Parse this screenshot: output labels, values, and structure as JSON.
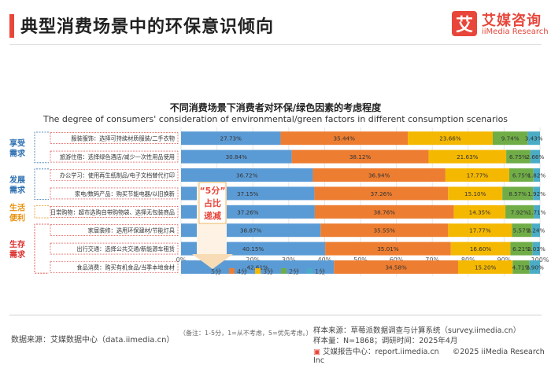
{
  "header": {
    "title": "典型消费场景中的环保意识倾向",
    "logo_mark": "艾",
    "logo_cn": "艾媒咨询",
    "logo_en": "iiMedia Research"
  },
  "chart_data": {
    "type": "bar",
    "orientation": "horizontal",
    "stacked": true,
    "title": "不同消费场景下消费者对环保/绿色因素的考虑程度",
    "subtitle": "The degree of consumers' consideration of environmental/green factors in different consumption scenarios",
    "categories": [
      "服装服饰：选择可持续材质服装/二手衣物",
      "旅游住宿：选择绿色酒店/减少一次性用品使用",
      "办公学习：使用再生纸制品/电子文档替代打印",
      "家电/数码产品：购买节能电器/以旧换新",
      "日常购物：超市选购自带购物袋、选择无包装商品",
      "家居装修：选用环保建材/节能灯具",
      "出行交通：选择公共交通/新能源车租赁",
      "食品消费：购买有机食品/当季本地食材"
    ],
    "series": [
      {
        "name": "5分",
        "color": "#5b9bd5",
        "values": [
          27.73,
          30.84,
          36.72,
          37.15,
          37.26,
          38.87,
          40.15,
          42.61
        ]
      },
      {
        "name": "4分",
        "color": "#ed7d31",
        "values": [
          35.44,
          38.12,
          36.94,
          37.26,
          38.76,
          35.55,
          35.01,
          34.58
        ]
      },
      {
        "name": "3分",
        "color": "#f5b800",
        "values": [
          23.66,
          21.63,
          17.77,
          15.1,
          14.35,
          17.77,
          16.6,
          15.2
        ]
      },
      {
        "name": "2分",
        "color": "#70ad47",
        "values": [
          9.74,
          6.75,
          6.75,
          8.57,
          7.92,
          5.57,
          6.21,
          4.71
        ]
      },
      {
        "name": "1分",
        "color": "#4bacc6",
        "values": [
          3.43,
          2.66,
          1.82,
          1.92,
          1.71,
          2.24,
          2.03,
          2.9
        ]
      }
    ],
    "labels": [
      [
        "27.73%",
        "35.44%",
        "23.66%",
        "9.74%",
        "3.43%"
      ],
      [
        "30.84%",
        "38.12%",
        "21.63%",
        "6.75%",
        "2.66%"
      ],
      [
        "36.72%",
        "36.94%",
        "17.77%",
        "6.75%",
        "1.82%"
      ],
      [
        "37.15%",
        "37.26%",
        "15.10%",
        "8.57%",
        "1.92%"
      ],
      [
        "37.26%",
        "38.76%",
        "14.35%",
        "7.92%",
        "1.71%"
      ],
      [
        "38.87%",
        "35.55%",
        "17.77%",
        "5.57%",
        "2.24%"
      ],
      [
        "40.15%",
        "35.01%",
        "16.60%",
        "6.21%",
        "2.03%"
      ],
      [
        "42.61%",
        "34.58%",
        "15.20%",
        "4.71%",
        "2.90%"
      ]
    ],
    "xticks": [
      "0%",
      "10%",
      "20%",
      "30%",
      "40%",
      "50%",
      "60%",
      "70%",
      "80%",
      "90%",
      "100%"
    ],
    "xlim": [
      0,
      100
    ],
    "legend_position": "bottom",
    "annotation": [
      "“5分”",
      "占比",
      "递减"
    ],
    "groups": [
      {
        "label": "享受需求",
        "color": "#2e6fb0",
        "rows": [
          0,
          1
        ]
      },
      {
        "label": "发展需求",
        "color": "#2e6fb0",
        "rows": [
          2,
          3
        ]
      },
      {
        "label": "生活便利",
        "color": "#e8900c",
        "rows": [
          4
        ]
      },
      {
        "label": "生存需求",
        "color": "#d9302c",
        "rows": [
          5,
          6,
          7
        ]
      }
    ]
  },
  "footer": {
    "source_left": "数据来源：艾媒数据中心（data.iimedia.cn）",
    "note": "（备注：1-5分，1=从不考虑，5=优先考虑。）",
    "sample_source": "样本来源：草莓派数据调查与计算系统（survey.iimedia.cn）",
    "sample_size": "样本量：N=1868；调研时间：2025年4月",
    "report_site": "艾媒报告中心：report.iimedia.cn",
    "copyright": "©2025  iiMedia Research  Inc"
  }
}
